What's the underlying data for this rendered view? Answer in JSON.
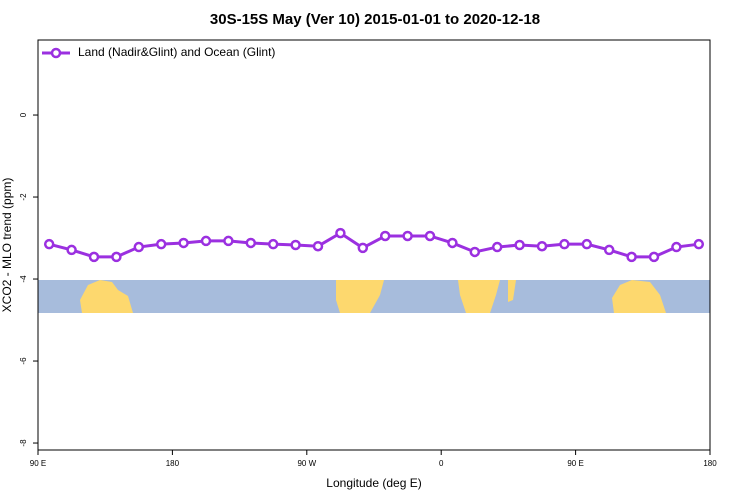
{
  "chart_data": {
    "type": "line",
    "title": "30S-15S May (Ver 10)   2015-01-01 to 2020-12-18",
    "x_label": "Longitude (deg E)",
    "y_label": "XCO2 - MLO trend (ppm)",
    "x": [
      97.5,
      112.5,
      127.5,
      142.5,
      157.5,
      172.5,
      187.5,
      202.5,
      217.5,
      232.5,
      247.5,
      262.5,
      277.5,
      292.5,
      307.5,
      322.5,
      337.5,
      352.5,
      367.5,
      382.5,
      397.5,
      412.5,
      427.5,
      442.5,
      457.5,
      472.5,
      487.5,
      502.5,
      517.5,
      532.5
    ],
    "series": [
      {
        "name": "Land (Nadir&Glint) and Ocean (Glint)",
        "color": "#9b30e0",
        "values": [
          -3.15,
          -3.29,
          -3.46,
          -3.46,
          -3.22,
          -3.15,
          -3.12,
          -3.07,
          -3.07,
          -3.12,
          -3.15,
          -3.17,
          -3.2,
          -2.88,
          -3.24,
          -2.95,
          -2.95,
          -2.95,
          -3.12,
          -3.34,
          -3.22,
          -3.17,
          -3.2,
          -3.15,
          -3.15,
          -3.29,
          -3.46,
          -3.46,
          -3.22,
          -3.15
        ]
      }
    ],
    "xlim": [
      90,
      540
    ],
    "xticks": [
      {
        "value": 90,
        "label": "90 E"
      },
      180,
      {
        "value": 270,
        "label": "90 W"
      },
      {
        "value": 360,
        "label": "0"
      },
      {
        "value": 450,
        "label": "90 E"
      },
      {
        "value": 540,
        "label": "180"
      }
    ],
    "ylim": [
      -8.17,
      1.83
    ],
    "yticks": [
      0,
      -2,
      -4,
      -6,
      -8
    ],
    "legend": "upper left"
  }
}
